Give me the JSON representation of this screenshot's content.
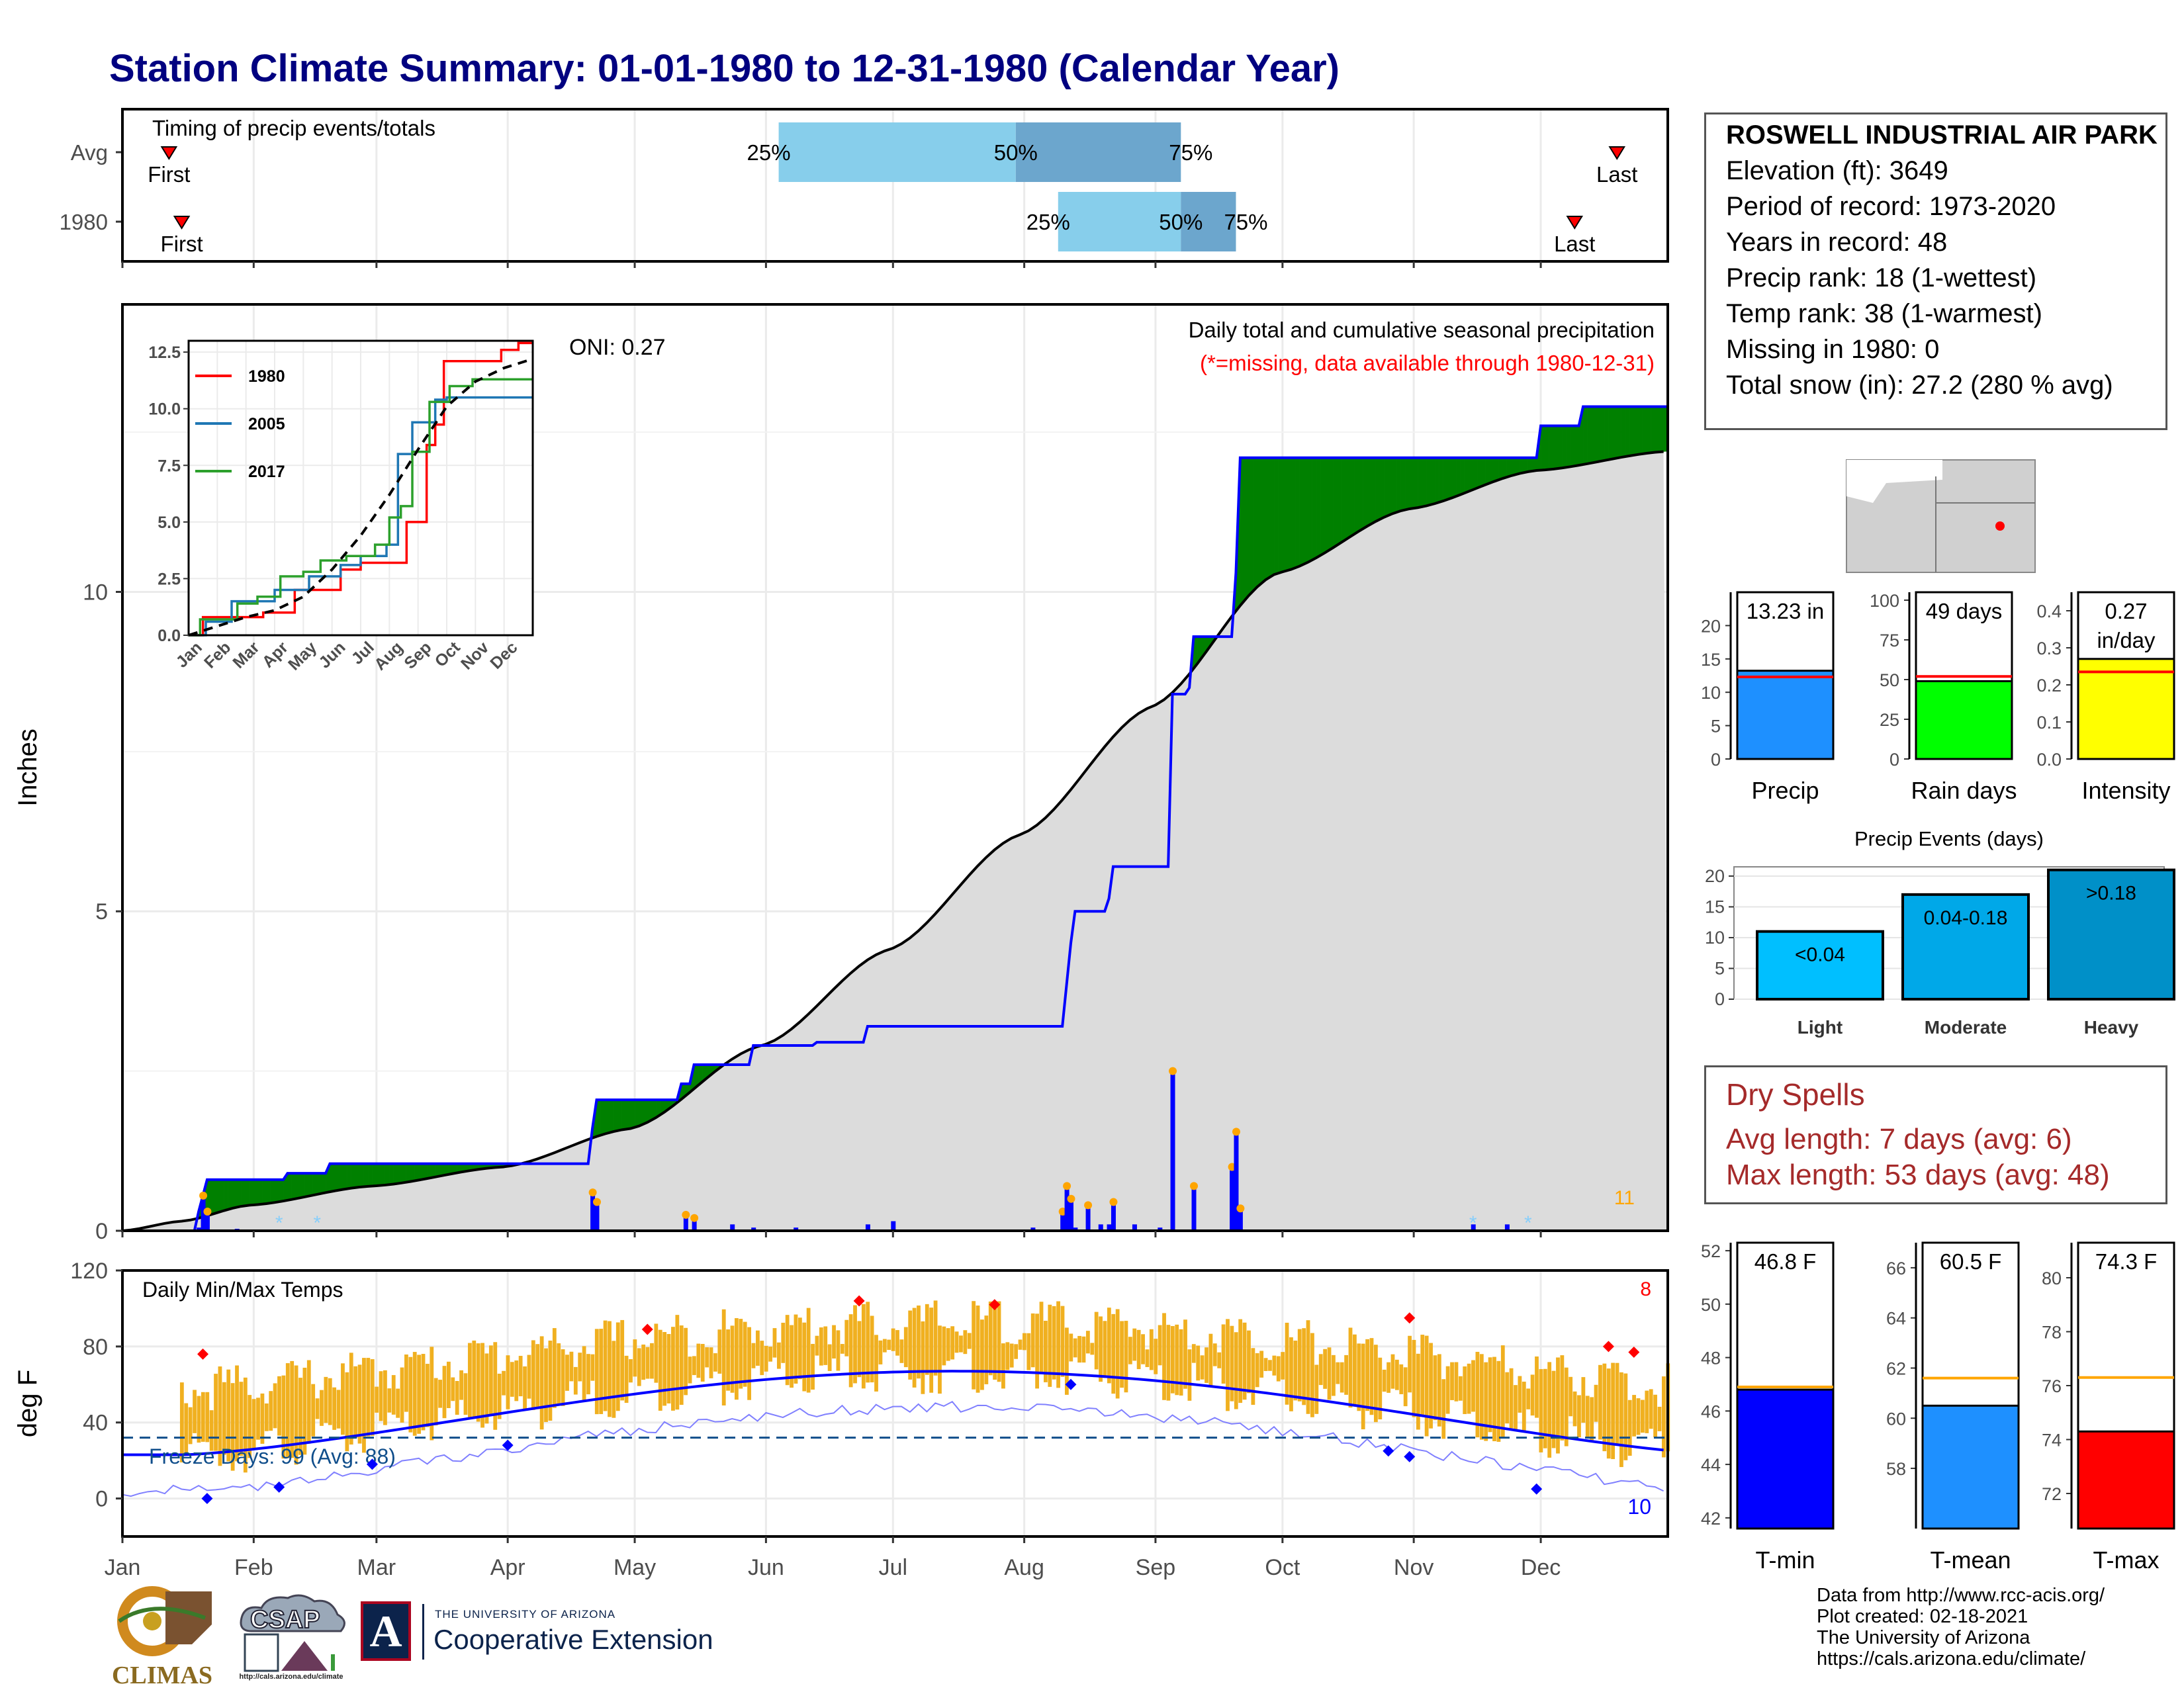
{
  "title": "Station Climate Summary: 01-01-1980 to 12-31-1980 (Calendar Year)",
  "station": {
    "name": "ROSWELL INDUSTRIAL AIR PARK",
    "lines": [
      "Elevation (ft): 3649",
      "Period of record: 1973-2020",
      "Years in record: 48",
      "Precip rank: 18 (1-wettest)",
      "Temp rank: 38 (1-warmest)",
      "Missing in 1980: 0",
      "Total snow (in): 27.2 (280 % avg)"
    ]
  },
  "dry_spells": {
    "title": "Dry Spells",
    "lines": [
      "Avg length: 7 days (avg: 6)",
      "Max length: 53 days (avg: 48)"
    ]
  },
  "footer": [
    "Data from http://www.rcc-acis.org/",
    "Plot created: 02-18-2021",
    "The University of Arizona",
    "https://cals.arizona.edu/climate/"
  ],
  "logos": {
    "climas": "CLIMAS",
    "csap": "CSAP",
    "csap_url": "http://cals.arizona.edu/climate",
    "ua_small": "THE UNIVERSITY OF ARIZONA",
    "ua_big": "Cooperative Extension",
    "ua_letter": "A"
  },
  "colors": {
    "title": "#000080",
    "wet": "#008000",
    "dry": "#8b5a00",
    "normal_fill": "#dcdcdc",
    "bars": "#0000ff",
    "temps": "#f0b020",
    "tmax": "#ff0000",
    "tmin": "#0000ff"
  },
  "chart_data": [
    {
      "type": "bar",
      "title": "Timing of precip events/totals",
      "rows": [
        {
          "label": "Avg",
          "first": "Jan 12",
          "q25": "Jun 4",
          "q50": "Jul 30",
          "q75": "Sep 7",
          "last": "Dec 19"
        },
        {
          "label": "1980",
          "first": "Jan 15",
          "q25": "Aug 9",
          "q50": "Sep 7",
          "q75": "Sep 20",
          "last": "Dec 9"
        }
      ],
      "labels": {
        "first": "First",
        "last": "Last",
        "q25": "25%",
        "q50": "50%",
        "q75": "75%"
      }
    },
    {
      "type": "area",
      "title": "Daily total and cumulative seasonal precipitation",
      "subtitle": "(*=missing, data available through 1980-12-31)",
      "annotation": "ONI: 0.27",
      "ylabel": "Inches",
      "ylim": [
        0,
        14.5
      ],
      "yticks": [
        0,
        5,
        10
      ],
      "months": [
        "Jan",
        "Feb",
        "Mar",
        "Apr",
        "May",
        "Jun",
        "Jul",
        "Aug",
        "Sep",
        "Oct",
        "Nov",
        "Dec"
      ],
      "corner_count": "11",
      "observed_cumulative": [
        {
          "doy": 1,
          "v": 0
        },
        {
          "doy": 19,
          "v": 0.3
        },
        {
          "doy": 21,
          "v": 0.8
        },
        {
          "doy": 40,
          "v": 0.9
        },
        {
          "doy": 50,
          "v": 1.05
        },
        {
          "doy": 100,
          "v": 1.05
        },
        {
          "doy": 112,
          "v": 1.6
        },
        {
          "doy": 113,
          "v": 2.05
        },
        {
          "doy": 130,
          "v": 2.05
        },
        {
          "doy": 133,
          "v": 2.3
        },
        {
          "doy": 136,
          "v": 2.6
        },
        {
          "doy": 145,
          "v": 2.6
        },
        {
          "doy": 150,
          "v": 2.9
        },
        {
          "doy": 165,
          "v": 2.95
        },
        {
          "doy": 177,
          "v": 3.2
        },
        {
          "doy": 223,
          "v": 3.2
        },
        {
          "doy": 225,
          "v": 4.5
        },
        {
          "doy": 226,
          "v": 5.0
        },
        {
          "doy": 234,
          "v": 5.2
        },
        {
          "doy": 235,
          "v": 5.7
        },
        {
          "doy": 248,
          "v": 5.7
        },
        {
          "doy": 249,
          "v": 8.4
        },
        {
          "doy": 253,
          "v": 8.5
        },
        {
          "doy": 254,
          "v": 9.3
        },
        {
          "doy": 263,
          "v": 9.3
        },
        {
          "doy": 264,
          "v": 10.3
        },
        {
          "doy": 265,
          "v": 12.1
        },
        {
          "doy": 330,
          "v": 12.1
        },
        {
          "doy": 336,
          "v": 12.6
        },
        {
          "doy": 346,
          "v": 12.9
        },
        {
          "doy": 366,
          "v": 12.9
        }
      ],
      "normal_cumulative": [
        {
          "doy": 1,
          "v": 0
        },
        {
          "doy": 15,
          "v": 0.15
        },
        {
          "doy": 31,
          "v": 0.4
        },
        {
          "doy": 60,
          "v": 0.7
        },
        {
          "doy": 91,
          "v": 1.0
        },
        {
          "doy": 121,
          "v": 1.6
        },
        {
          "doy": 152,
          "v": 2.9
        },
        {
          "doy": 182,
          "v": 4.4
        },
        {
          "doy": 213,
          "v": 6.2
        },
        {
          "doy": 244,
          "v": 8.2
        },
        {
          "doy": 274,
          "v": 10.3
        },
        {
          "doy": 305,
          "v": 11.3
        },
        {
          "doy": 335,
          "v": 11.9
        },
        {
          "doy": 366,
          "v": 12.2
        }
      ],
      "daily_precip": [
        {
          "doy": 19,
          "v": 0.05
        },
        {
          "doy": 20,
          "v": 0.55
        },
        {
          "doy": 21,
          "v": 0.3
        },
        {
          "doy": 28,
          "v": 0.03
        },
        {
          "doy": 112,
          "v": 0.6
        },
        {
          "doy": 113,
          "v": 0.45
        },
        {
          "doy": 134,
          "v": 0.25
        },
        {
          "doy": 136,
          "v": 0.2
        },
        {
          "doy": 145,
          "v": 0.1
        },
        {
          "doy": 150,
          "v": 0.05
        },
        {
          "doy": 160,
          "v": 0.05
        },
        {
          "doy": 177,
          "v": 0.1
        },
        {
          "doy": 183,
          "v": 0.15
        },
        {
          "doy": 216,
          "v": 0.05
        },
        {
          "doy": 223,
          "v": 0.3
        },
        {
          "doy": 224,
          "v": 0.7
        },
        {
          "doy": 225,
          "v": 0.5
        },
        {
          "doy": 226,
          "v": 0.05
        },
        {
          "doy": 229,
          "v": 0.4
        },
        {
          "doy": 232,
          "v": 0.1
        },
        {
          "doy": 234,
          "v": 0.1
        },
        {
          "doy": 235,
          "v": 0.45
        },
        {
          "doy": 240,
          "v": 0.1
        },
        {
          "doy": 246,
          "v": 0.05
        },
        {
          "doy": 249,
          "v": 2.5
        },
        {
          "doy": 254,
          "v": 0.7
        },
        {
          "doy": 263,
          "v": 1.0
        },
        {
          "doy": 264,
          "v": 1.55
        },
        {
          "doy": 265,
          "v": 0.35
        },
        {
          "doy": 320,
          "v": 0.1
        },
        {
          "doy": 328,
          "v": 0.1
        }
      ],
      "snow_marks": [
        {
          "doy": 38
        },
        {
          "doy": 47
        },
        {
          "doy": 320
        },
        {
          "doy": 333
        }
      ]
    },
    {
      "type": "line",
      "title": "Daily total and cumulative seasonal precipitation inset",
      "ylim": [
        0,
        13
      ],
      "yticks": [
        "0.0",
        "2.5",
        "5.0",
        "7.5",
        "10.0",
        "12.5"
      ],
      "xticks": [
        "Jan",
        "Feb",
        "Mar",
        "Apr",
        "May",
        "Jun",
        "Jul",
        "Aug",
        "Sep",
        "Oct",
        "Nov",
        "Dec"
      ],
      "series": [
        {
          "name": "1980",
          "color": "#ff0000",
          "points": [
            [
              0,
              0
            ],
            [
              0.5,
              0.8
            ],
            [
              2.6,
              1.0
            ],
            [
              3.5,
              1.0
            ],
            [
              3.7,
              2.0
            ],
            [
              5.3,
              2.9
            ],
            [
              6.0,
              3.2
            ],
            [
              7.3,
              3.2
            ],
            [
              7.6,
              5.0
            ],
            [
              8.3,
              8.4
            ],
            [
              8.6,
              9.3
            ],
            [
              8.9,
              12.1
            ],
            [
              10.9,
              12.6
            ],
            [
              11.5,
              12.9
            ],
            [
              12,
              12.9
            ]
          ]
        },
        {
          "name": "2005",
          "color": "#1f77b4",
          "points": [
            [
              0,
              0
            ],
            [
              0.6,
              0.6
            ],
            [
              1.5,
              1.5
            ],
            [
              3.0,
              2.0
            ],
            [
              4.2,
              2.6
            ],
            [
              5.3,
              3.1
            ],
            [
              6.0,
              3.5
            ],
            [
              6.9,
              4.0
            ],
            [
              7.3,
              8.0
            ],
            [
              7.8,
              9.4
            ],
            [
              8.6,
              10.4
            ],
            [
              9.0,
              10.5
            ],
            [
              12,
              10.5
            ]
          ]
        },
        {
          "name": "2017",
          "color": "#2ca02c",
          "points": [
            [
              0,
              0
            ],
            [
              0.4,
              0.7
            ],
            [
              1.7,
              1.4
            ],
            [
              2.4,
              1.7
            ],
            [
              3.2,
              2.6
            ],
            [
              4.0,
              2.8
            ],
            [
              4.6,
              3.3
            ],
            [
              5.5,
              3.5
            ],
            [
              6.5,
              4.0
            ],
            [
              7.0,
              5.2
            ],
            [
              7.4,
              5.7
            ],
            [
              7.8,
              8.1
            ],
            [
              8.4,
              10.3
            ],
            [
              9.1,
              11.0
            ],
            [
              9.9,
              11.3
            ],
            [
              12,
              11.3
            ]
          ]
        },
        {
          "points": [
            [
              0,
              0
            ],
            [
              1,
              0.4
            ],
            [
              2,
              0.8
            ],
            [
              3,
              1.1
            ],
            [
              4,
              1.7
            ],
            [
              5,
              2.9
            ],
            [
              6,
              4.4
            ],
            [
              7,
              6.2
            ],
            [
              8,
              8.2
            ],
            [
              9,
              10.1
            ],
            [
              10,
              11.2
            ],
            [
              11,
              11.8
            ],
            [
              12,
              12.2
            ]
          ],
          "color": "#000000",
          "dashed": true
        }
      ]
    },
    {
      "type": "line",
      "title": "Daily Min/Max Temps",
      "ylabel": "deg F",
      "ylim": [
        -20,
        120
      ],
      "yticks": [
        0,
        40,
        80,
        120
      ],
      "freeze_label": "Freeze Days: 99 (Avg: 88)",
      "freeze_line": 32,
      "count_high": "8",
      "count_low": "10",
      "months": [
        "Jan",
        "Feb",
        "Mar",
        "Apr",
        "May",
        "Jun",
        "Jul",
        "Aug",
        "Sep",
        "Oct",
        "Nov",
        "Dec"
      ],
      "normal_tmax": {
        "base": 57,
        "amp": 36
      },
      "normal_tmin": {
        "base": 23,
        "amp": 44
      },
      "record_max_offset": 14,
      "record_min_offset": -22
    },
    {
      "type": "bar",
      "title": "Precip",
      "value_label": "13.23 in",
      "value": 13.23,
      "normal": 12.3,
      "ylim": [
        0,
        25
      ],
      "yticks": [
        0,
        5,
        10,
        15,
        20
      ],
      "color": "#1e90ff"
    },
    {
      "type": "bar",
      "title": "Rain days",
      "value_label": "49 days",
      "value": 49,
      "normal": 52,
      "ylim": [
        0,
        105
      ],
      "yticks": [
        0,
        25,
        50,
        75,
        100
      ],
      "color": "#00ff00"
    },
    {
      "type": "bar",
      "title": "Intensity",
      "value_label": [
        "0.27",
        "in/day"
      ],
      "value": 0.27,
      "normal": 0.235,
      "ylim": [
        0,
        0.45
      ],
      "yticks": [
        "0.0",
        "0.1",
        "0.2",
        "0.3",
        "0.4"
      ],
      "color": "#ffff00"
    },
    {
      "type": "bar",
      "title": "Precip Events (days)",
      "categories": [
        "Light",
        "Moderate",
        "Heavy"
      ],
      "values": [
        11,
        17,
        21
      ],
      "value_labels": [
        "<0.04",
        "0.04-0.18",
        ">0.18"
      ],
      "colors": [
        "#00bfff",
        "#00a8e8",
        "#0090c8"
      ],
      "ylim": [
        0,
        21.5
      ],
      "yticks": [
        0,
        5,
        10,
        15,
        20
      ]
    },
    {
      "type": "bar",
      "title": "T-min",
      "value_label": "46.8 F",
      "value": 46.8,
      "normal": 46.9,
      "ylim": [
        41.6,
        52.3
      ],
      "yticks": [
        42,
        44,
        46,
        48,
        50,
        52
      ],
      "color": "#0000ff"
    },
    {
      "type": "bar",
      "title": "T-mean",
      "value_label": "60.5 F",
      "value": 60.5,
      "normal": 61.6,
      "ylim": [
        55.6,
        67.0
      ],
      "yticks": [
        58,
        60,
        62,
        64,
        66
      ],
      "color": "#1e90ff"
    },
    {
      "type": "bar",
      "title": "T-max",
      "value_label": "74.3 F",
      "value": 74.3,
      "normal": 76.3,
      "ylim": [
        70.7,
        81.3
      ],
      "yticks": [
        72,
        74,
        76,
        78,
        80
      ],
      "color": "#ff0000"
    }
  ]
}
